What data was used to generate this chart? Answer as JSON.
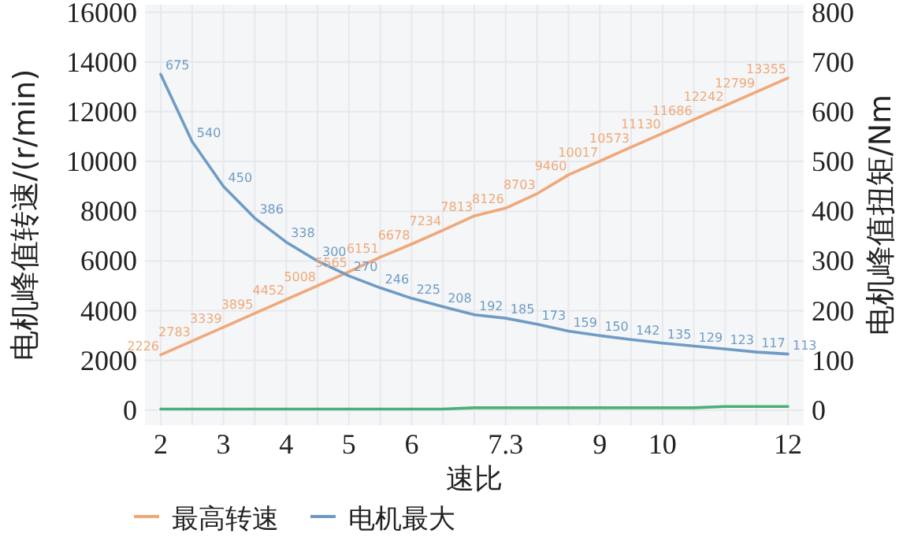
{
  "chart_data": {
    "type": "line",
    "xlabel": "速比",
    "ylabel": "电机峰值转速/(r/min)",
    "y2label": "电机峰值扭矩/Nm",
    "categories": [
      "2",
      null,
      "3",
      null,
      "4",
      null,
      "5",
      null,
      "6",
      null,
      null,
      "7.3",
      null,
      null,
      "9",
      null,
      "10",
      null,
      null,
      null,
      "12"
    ],
    "series": [
      {
        "name": "最高转速",
        "color": "#f0a878",
        "values": [
          2226,
          2783,
          3339,
          3895,
          4452,
          5008,
          5565,
          6151,
          6678,
          7234,
          7813,
          8126,
          8703,
          9460,
          10017,
          10573,
          11130,
          11686,
          12242,
          12799,
          13355
        ]
      },
      {
        "name": "电机最大",
        "color": "#6f9cc4",
        "axis": "y2",
        "values": [
          675,
          540,
          450,
          386,
          338,
          300,
          270,
          246,
          225,
          208,
          192,
          185,
          173,
          159,
          150,
          142,
          135,
          129,
          123,
          117,
          113
        ]
      },
      {
        "color": "#4caf78",
        "data_labels": false,
        "values": [
          50,
          50,
          50,
          50,
          50,
          50,
          50,
          50,
          50,
          50,
          100,
          100,
          100,
          100,
          100,
          100,
          100,
          100,
          150,
          150,
          150
        ]
      }
    ],
    "data_labels": true,
    "ylim": [
      -600,
      16300
    ],
    "yticks": [
      0,
      2000,
      4000,
      6000,
      8000,
      10000,
      12000,
      14000,
      16000
    ],
    "y2lim": [
      -30,
      815
    ],
    "y2ticks": [
      0,
      100,
      200,
      300,
      400,
      500,
      600,
      700,
      800
    ],
    "grid": true,
    "legend": "bottom"
  }
}
